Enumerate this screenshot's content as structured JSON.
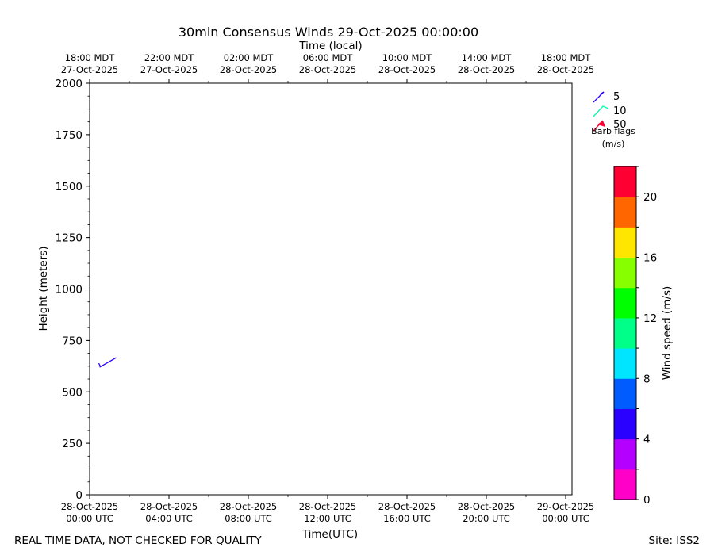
{
  "chart_data": {
    "type": "wind-barb",
    "title": "30min Consensus Winds 29-Oct-2025 00:00:00",
    "top_axis_label": "Time (local)",
    "xlabel": "Time(UTC)",
    "ylabel": "Height (meters)",
    "ylim": [
      0,
      2000
    ],
    "y_ticks": [
      "0",
      "250",
      "500",
      "750",
      "1000",
      "1250",
      "1500",
      "1750",
      "2000"
    ],
    "x_ticks_utc": [
      {
        "date": "28-Oct-2025",
        "time": "00:00 UTC"
      },
      {
        "date": "28-Oct-2025",
        "time": "04:00 UTC"
      },
      {
        "date": "28-Oct-2025",
        "time": "08:00 UTC"
      },
      {
        "date": "28-Oct-2025",
        "time": "12:00 UTC"
      },
      {
        "date": "28-Oct-2025",
        "time": "16:00 UTC"
      },
      {
        "date": "28-Oct-2025",
        "time": "20:00 UTC"
      },
      {
        "date": "29-Oct-2025",
        "time": "00:00 UTC"
      }
    ],
    "x_ticks_local": [
      {
        "time": "18:00 MDT",
        "date": "27-Oct-2025"
      },
      {
        "time": "22:00 MDT",
        "date": "27-Oct-2025"
      },
      {
        "time": "02:00 MDT",
        "date": "28-Oct-2025"
      },
      {
        "time": "06:00 MDT",
        "date": "28-Oct-2025"
      },
      {
        "time": "10:00 MDT",
        "date": "28-Oct-2025"
      },
      {
        "time": "14:00 MDT",
        "date": "28-Oct-2025"
      },
      {
        "time": "18:00 MDT",
        "date": "28-Oct-2025"
      }
    ],
    "barbs": [
      {
        "time_utc": "28-Oct-2025 00:30",
        "height_m": 620,
        "speed_ms": 5,
        "color": "#2a00ff"
      }
    ],
    "barb_legend": {
      "entries": [
        {
          "label": "5",
          "color": "#2a00ff"
        },
        {
          "label": "10",
          "color": "#00ffaa"
        },
        {
          "label": "50",
          "color": "#ff0033"
        }
      ],
      "caption_line1": "Barb flags",
      "caption_line2": "(m/s)"
    },
    "colorbar": {
      "label": "Wind speed (m/s)",
      "range": [
        0,
        22
      ],
      "tick_labels": [
        "0",
        "4",
        "8",
        "12",
        "16",
        "20"
      ],
      "colors": [
        "#ff00c8",
        "#b300ff",
        "#2a00ff",
        "#005cff",
        "#00e5ff",
        "#00ff88",
        "#00ff00",
        "#88ff00",
        "#ffe600",
        "#ff6600",
        "#ff0033"
      ]
    }
  },
  "footer": {
    "disclaimer": "REAL TIME DATA, NOT CHECKED FOR QUALITY",
    "site": "Site: ISS2"
  }
}
